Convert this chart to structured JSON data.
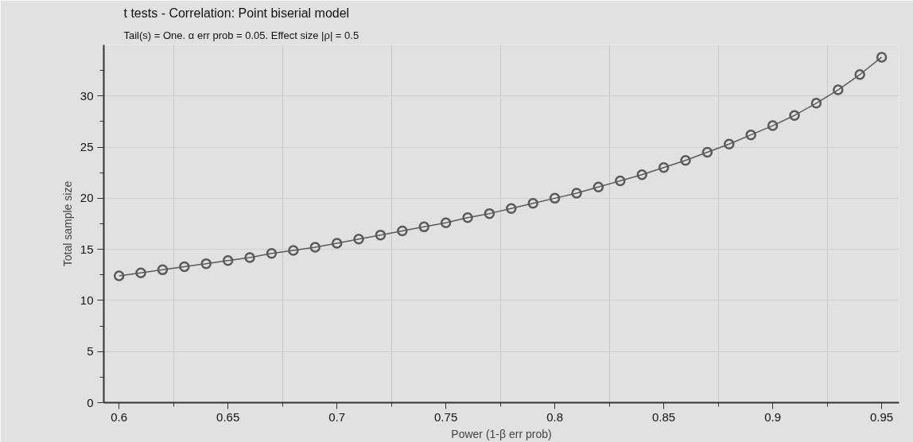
{
  "chart_data": {
    "type": "line",
    "title": "t tests - Correlation: Point biserial model",
    "subtitle": "Tail(s) = One. α err prob = 0.05. Effect size |ρ| = 0.5",
    "xlabel": "Power (1-β err prob)",
    "ylabel": "Total sample size",
    "x": [
      0.6,
      0.61,
      0.62,
      0.63,
      0.64,
      0.65,
      0.66,
      0.67,
      0.68,
      0.69,
      0.7,
      0.71,
      0.72,
      0.73,
      0.74,
      0.75,
      0.76,
      0.77,
      0.78,
      0.79,
      0.8,
      0.81,
      0.82,
      0.83,
      0.84,
      0.85,
      0.86,
      0.87,
      0.88,
      0.89,
      0.9,
      0.91,
      0.92,
      0.93,
      0.94,
      0.95
    ],
    "series": [
      {
        "color": "#5a5a5a",
        "values": [
          12.4,
          12.7,
          13.0,
          13.3,
          13.6,
          13.9,
          14.2,
          14.6,
          14.9,
          15.2,
          15.6,
          16.0,
          16.4,
          16.8,
          17.2,
          17.6,
          18.1,
          18.5,
          19.0,
          19.5,
          20.0,
          20.5,
          21.1,
          21.7,
          22.3,
          23.0,
          23.7,
          24.5,
          25.3,
          26.2,
          27.1,
          28.1,
          29.3,
          30.6,
          32.1,
          33.8
        ]
      }
    ],
    "xlim": [
      0.593,
      0.958
    ],
    "ylim": [
      0,
      35
    ],
    "xticks": [
      0.6,
      0.65,
      0.7,
      0.75,
      0.8,
      0.85,
      0.9,
      0.95
    ],
    "yticks": [
      0,
      5,
      10,
      15,
      20,
      25,
      30
    ],
    "grid": true,
    "marker": "circle",
    "line_style": "solid"
  }
}
